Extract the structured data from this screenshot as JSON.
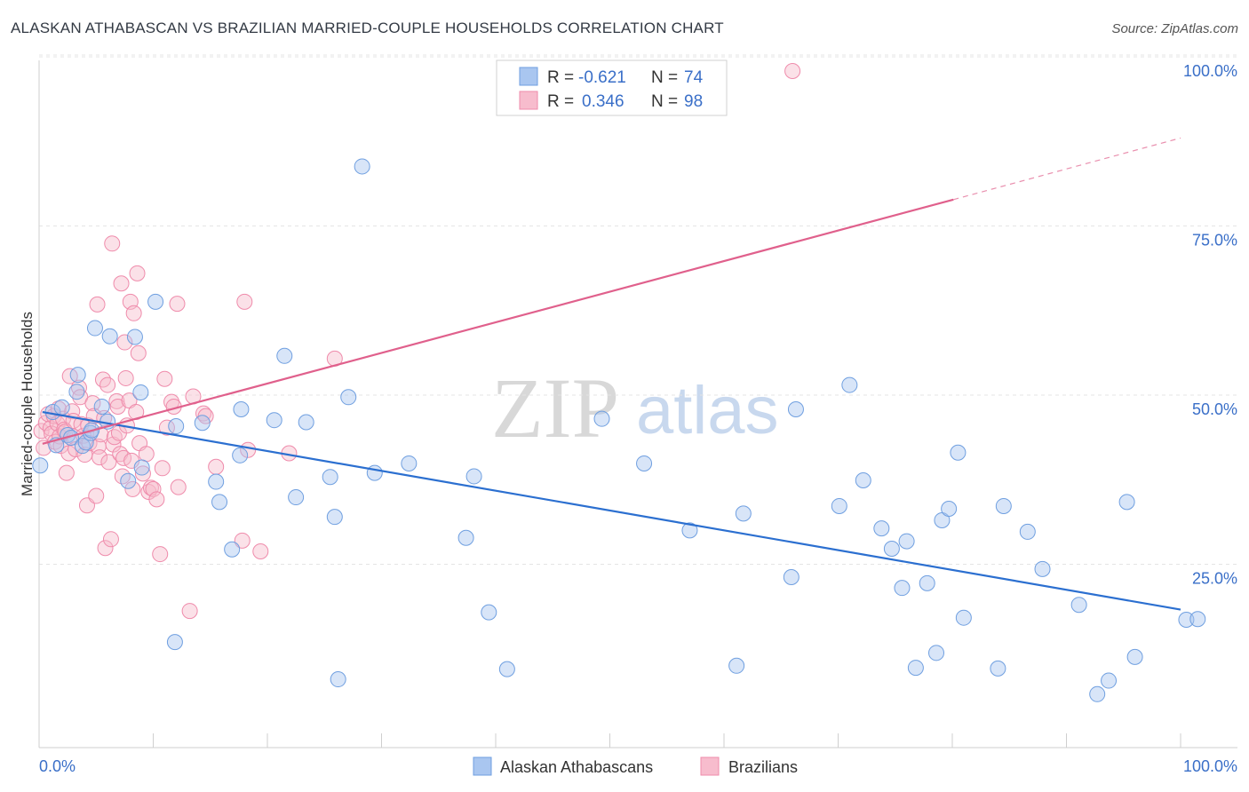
{
  "title": "ALASKAN ATHABASCAN VS BRAZILIAN MARRIED-COUPLE HOUSEHOLDS CORRELATION CHART",
  "source": "Source: ZipAtlas.com",
  "watermark": {
    "part1": "ZIP",
    "part2": "atlas"
  },
  "legend": {
    "r_label": "R =",
    "n_label": "N =",
    "rows": [
      {
        "r": "-0.621",
        "n": "74"
      },
      {
        "r": "0.346",
        "n": "98"
      }
    ]
  },
  "chart_data": {
    "type": "scatter",
    "xlabel": "",
    "ylabel": "Married-couple Households",
    "xlim": [
      0,
      100
    ],
    "ylim": [
      0,
      100
    ],
    "x_tick_labels": [
      "0.0%",
      "100.0%"
    ],
    "y_tick_labels": [
      "25.0%",
      "50.0%",
      "75.0%",
      "100.0%"
    ],
    "y_ticks": [
      25,
      50,
      75,
      100
    ],
    "grid": true,
    "legend_position": "top-center",
    "colors": {
      "blue": "#6f9fe0",
      "blue_fill": "#a9c6f0",
      "blue_line": "#2b6fd0",
      "pink": "#ef8bab",
      "pink_fill": "#f7bccd",
      "pink_line": "#e0608c"
    },
    "series": [
      {
        "name": "Alaskan Athabascans",
        "color": "blue",
        "trend": [
          [
            0.3,
            49.6
          ],
          [
            100,
            20.4
          ]
        ],
        "points": [
          [
            0.1,
            41.7
          ],
          [
            1.2,
            49.6
          ],
          [
            1.5,
            44.7
          ],
          [
            2.0,
            50.3
          ],
          [
            2.5,
            46.2
          ],
          [
            2.8,
            45.8
          ],
          [
            3.3,
            52.6
          ],
          [
            3.4,
            55.1
          ],
          [
            3.8,
            44.6
          ],
          [
            4.1,
            45.1
          ],
          [
            4.5,
            46.5
          ],
          [
            4.6,
            46.9
          ],
          [
            4.9,
            62.0
          ],
          [
            5.5,
            50.4
          ],
          [
            6.0,
            48.2
          ],
          [
            6.2,
            60.8
          ],
          [
            7.8,
            39.4
          ],
          [
            8.4,
            60.7
          ],
          [
            8.9,
            52.5
          ],
          [
            9.0,
            41.4
          ],
          [
            10.2,
            65.9
          ],
          [
            11.9,
            15.6
          ],
          [
            12.0,
            47.5
          ],
          [
            14.3,
            48.0
          ],
          [
            15.5,
            39.3
          ],
          [
            15.8,
            36.3
          ],
          [
            16.9,
            29.3
          ],
          [
            17.6,
            43.2
          ],
          [
            17.7,
            50.0
          ],
          [
            20.6,
            48.4
          ],
          [
            21.5,
            57.9
          ],
          [
            22.5,
            37.0
          ],
          [
            23.4,
            48.1
          ],
          [
            25.5,
            40.0
          ],
          [
            25.9,
            34.1
          ],
          [
            26.2,
            10.1
          ],
          [
            27.1,
            51.8
          ],
          [
            28.3,
            85.9
          ],
          [
            29.4,
            40.6
          ],
          [
            32.4,
            42.0
          ],
          [
            37.4,
            31.0
          ],
          [
            38.1,
            40.1
          ],
          [
            39.4,
            20.0
          ],
          [
            41.0,
            11.6
          ],
          [
            49.3,
            48.6
          ],
          [
            53.0,
            42.0
          ],
          [
            57.0,
            32.1
          ],
          [
            61.1,
            12.1
          ],
          [
            61.7,
            34.6
          ],
          [
            65.9,
            25.2
          ],
          [
            66.3,
            50.0
          ],
          [
            70.1,
            35.7
          ],
          [
            71.0,
            53.6
          ],
          [
            72.2,
            39.5
          ],
          [
            73.8,
            32.4
          ],
          [
            74.7,
            29.4
          ],
          [
            75.6,
            23.6
          ],
          [
            76.0,
            30.5
          ],
          [
            76.8,
            11.8
          ],
          [
            77.8,
            24.3
          ],
          [
            78.6,
            14.0
          ],
          [
            79.1,
            33.6
          ],
          [
            79.7,
            35.3
          ],
          [
            80.5,
            43.6
          ],
          [
            81.0,
            19.2
          ],
          [
            84.0,
            11.7
          ],
          [
            84.5,
            35.7
          ],
          [
            86.6,
            31.9
          ],
          [
            87.9,
            26.4
          ],
          [
            91.1,
            21.1
          ],
          [
            92.7,
            7.9
          ],
          [
            93.7,
            9.9
          ],
          [
            95.3,
            36.3
          ],
          [
            96.0,
            13.4
          ],
          [
            100.5,
            18.9
          ],
          [
            101.5,
            19.0
          ]
        ]
      },
      {
        "name": "Brazilians",
        "color": "pink",
        "trend": [
          [
            0.3,
            44.9
          ],
          [
            80.1,
            81.0
          ]
        ],
        "trend_ext": [
          [
            80.1,
            81.0
          ],
          [
            100,
            90.1
          ]
        ],
        "points": [
          [
            0.2,
            46.8
          ],
          [
            0.4,
            44.3
          ],
          [
            0.6,
            48.0
          ],
          [
            0.8,
            49.3
          ],
          [
            1.0,
            47.2
          ],
          [
            1.1,
            46.4
          ],
          [
            1.3,
            49.0
          ],
          [
            1.4,
            45.2
          ],
          [
            1.6,
            47.9
          ],
          [
            1.7,
            50.1
          ],
          [
            1.8,
            46.0
          ],
          [
            1.9,
            44.6
          ],
          [
            2.1,
            48.6
          ],
          [
            2.2,
            47.0
          ],
          [
            2.3,
            46.7
          ],
          [
            2.4,
            40.6
          ],
          [
            2.6,
            43.5
          ],
          [
            2.7,
            54.9
          ],
          [
            2.9,
            49.7
          ],
          [
            3.0,
            48.3
          ],
          [
            3.1,
            45.9
          ],
          [
            3.2,
            44.1
          ],
          [
            3.5,
            53.2
          ],
          [
            3.6,
            51.8
          ],
          [
            3.7,
            47.8
          ],
          [
            3.9,
            46.1
          ],
          [
            4.0,
            43.3
          ],
          [
            4.2,
            35.8
          ],
          [
            4.3,
            47.6
          ],
          [
            4.4,
            45.0
          ],
          [
            4.7,
            50.9
          ],
          [
            4.8,
            49.0
          ],
          [
            5.0,
            37.2
          ],
          [
            5.1,
            65.5
          ],
          [
            5.2,
            44.5
          ],
          [
            5.3,
            42.9
          ],
          [
            5.4,
            46.3
          ],
          [
            5.6,
            54.4
          ],
          [
            5.7,
            48.7
          ],
          [
            5.8,
            29.5
          ],
          [
            6.0,
            53.6
          ],
          [
            6.1,
            42.2
          ],
          [
            6.3,
            30.8
          ],
          [
            6.4,
            74.5
          ],
          [
            6.5,
            44.8
          ],
          [
            6.6,
            45.9
          ],
          [
            6.8,
            51.2
          ],
          [
            6.9,
            50.4
          ],
          [
            7.0,
            46.5
          ],
          [
            7.1,
            43.4
          ],
          [
            7.2,
            68.6
          ],
          [
            7.3,
            40.1
          ],
          [
            7.4,
            42.8
          ],
          [
            7.5,
            59.9
          ],
          [
            7.6,
            54.6
          ],
          [
            7.7,
            47.6
          ],
          [
            7.9,
            51.3
          ],
          [
            8.0,
            65.9
          ],
          [
            8.1,
            42.4
          ],
          [
            8.2,
            38.2
          ],
          [
            8.3,
            64.2
          ],
          [
            8.5,
            49.6
          ],
          [
            8.6,
            70.1
          ],
          [
            8.7,
            58.3
          ],
          [
            8.8,
            45.0
          ],
          [
            9.1,
            40.5
          ],
          [
            9.4,
            43.4
          ],
          [
            9.6,
            37.8
          ],
          [
            9.8,
            38.4
          ],
          [
            10.0,
            38.2
          ],
          [
            10.3,
            36.7
          ],
          [
            10.6,
            28.6
          ],
          [
            10.8,
            41.3
          ],
          [
            11.0,
            54.5
          ],
          [
            11.2,
            47.3
          ],
          [
            11.6,
            51.1
          ],
          [
            11.8,
            50.4
          ],
          [
            12.1,
            65.6
          ],
          [
            12.2,
            38.5
          ],
          [
            13.2,
            20.2
          ],
          [
            13.5,
            51.9
          ],
          [
            14.4,
            49.4
          ],
          [
            14.6,
            49.0
          ],
          [
            15.5,
            41.5
          ],
          [
            17.8,
            30.6
          ],
          [
            18.0,
            65.9
          ],
          [
            18.3,
            44.0
          ],
          [
            19.4,
            29.0
          ],
          [
            21.9,
            43.5
          ],
          [
            25.9,
            57.5
          ],
          [
            66.0,
            100.0
          ]
        ]
      }
    ]
  }
}
